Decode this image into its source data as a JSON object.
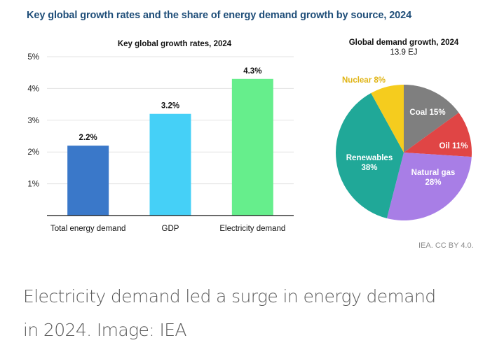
{
  "main_title": "Key global growth rates and the share of energy demand growth by source, 2024",
  "credit": "IEA. CC BY 4.0.",
  "caption": {
    "line1": "Electricity demand led a surge in energy demand",
    "line2": "in 2024. Image: IEA"
  },
  "chart_data": [
    {
      "type": "bar",
      "title": "Key global growth rates, 2024",
      "categories": [
        "Total energy demand",
        "GDP",
        "Electricity demand"
      ],
      "values": [
        2.2,
        3.2,
        4.3
      ],
      "data_labels": [
        "2.2%",
        "3.2%",
        "4.3%"
      ],
      "colors": [
        "#3a78c9",
        "#45d0f7",
        "#66ee8c"
      ],
      "ylim": [
        0,
        5
      ],
      "yticks": [
        1,
        2,
        3,
        4,
        5
      ],
      "ytick_labels": [
        "1%",
        "2%",
        "3%",
        "4%",
        "5%"
      ],
      "xlabel": "",
      "ylabel": "",
      "grid": true
    },
    {
      "type": "pie",
      "title": "Global demand growth, 2024",
      "subtitle": "13.9 EJ",
      "start": "top",
      "direction": "clockwise",
      "slices": [
        {
          "name": "Coal",
          "value": 15,
          "label": "Coal 15%",
          "color": "#7f7f7f",
          "label_color": "#ffffff"
        },
        {
          "name": "Oil",
          "value": 11,
          "label": "Oil 11%",
          "color": "#e04545",
          "label_color": "#ffffff"
        },
        {
          "name": "Natural gas",
          "value": 28,
          "label": "Natural gas|28%",
          "color": "#a87ee6",
          "label_color": "#ffffff"
        },
        {
          "name": "Renewables",
          "value": 38,
          "label": "Renewables|38%",
          "color": "#20a898",
          "label_color": "#ffffff"
        },
        {
          "name": "Nuclear",
          "value": 8,
          "label": "Nuclear 8%",
          "color": "#f5cc1e",
          "label_color": "#e0b414"
        }
      ]
    }
  ]
}
